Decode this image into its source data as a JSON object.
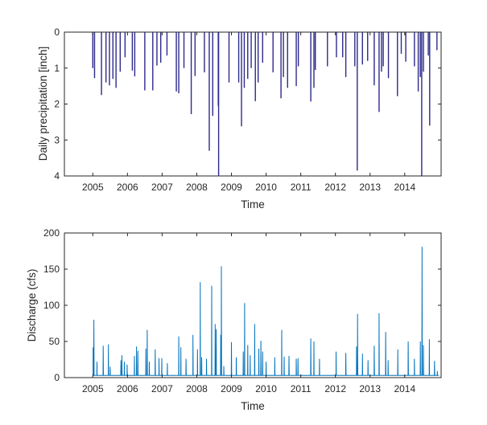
{
  "chart_data": [
    {
      "type": "bar",
      "xlabel": "Time",
      "ylabel": "Daily precipitation [inch]",
      "xlim": [
        2004.18,
        2015.05
      ],
      "ylim": [
        0,
        4
      ],
      "y_reversed": true,
      "xticks": [
        "2005",
        "2006",
        "2007",
        "2008",
        "2009",
        "2010",
        "2011",
        "2012",
        "2013",
        "2014"
      ],
      "yticks": [
        "0",
        "1",
        "2",
        "3",
        "4"
      ],
      "color": "#2e2a8c",
      "grid": false,
      "points": [
        [
          2005.0,
          1.0
        ],
        [
          2005.05,
          1.28
        ],
        [
          2005.25,
          1.75
        ],
        [
          2005.38,
          1.4
        ],
        [
          2005.48,
          1.48
        ],
        [
          2005.58,
          1.3
        ],
        [
          2005.67,
          1.55
        ],
        [
          2005.79,
          1.1
        ],
        [
          2005.93,
          0.7
        ],
        [
          2006.14,
          1.07
        ],
        [
          2006.21,
          1.23
        ],
        [
          2006.5,
          1.62
        ],
        [
          2006.73,
          1.62
        ],
        [
          2006.85,
          0.93
        ],
        [
          2006.96,
          0.85
        ],
        [
          2007.14,
          0.65
        ],
        [
          2007.41,
          1.65
        ],
        [
          2007.48,
          1.7
        ],
        [
          2007.63,
          1.0
        ],
        [
          2007.84,
          2.28
        ],
        [
          2007.95,
          1.22
        ],
        [
          2008.22,
          1.12
        ],
        [
          2008.36,
          3.3
        ],
        [
          2008.46,
          2.33
        ],
        [
          2008.62,
          2.05
        ],
        [
          2008.63,
          4.0
        ],
        [
          2008.93,
          1.4
        ],
        [
          2009.21,
          1.4
        ],
        [
          2009.29,
          2.62
        ],
        [
          2009.37,
          1.55
        ],
        [
          2009.47,
          1.3
        ],
        [
          2009.57,
          1.0
        ],
        [
          2009.69,
          1.92
        ],
        [
          2009.77,
          1.4
        ],
        [
          2009.9,
          0.85
        ],
        [
          2010.2,
          1.12
        ],
        [
          2010.43,
          1.84
        ],
        [
          2010.5,
          1.25
        ],
        [
          2010.62,
          1.55
        ],
        [
          2010.87,
          1.5
        ],
        [
          2010.93,
          0.95
        ],
        [
          2011.29,
          1.93
        ],
        [
          2011.38,
          1.55
        ],
        [
          2011.42,
          1.05
        ],
        [
          2011.77,
          0.95
        ],
        [
          2012.03,
          0.7
        ],
        [
          2012.21,
          0.7
        ],
        [
          2012.3,
          1.25
        ],
        [
          2012.56,
          0.95
        ],
        [
          2012.63,
          3.85
        ],
        [
          2012.78,
          0.9
        ],
        [
          2012.93,
          0.8
        ],
        [
          2013.12,
          1.48
        ],
        [
          2013.26,
          2.22
        ],
        [
          2013.33,
          1.1
        ],
        [
          2013.38,
          0.95
        ],
        [
          2013.53,
          1.28
        ],
        [
          2013.79,
          1.78
        ],
        [
          2013.9,
          0.6
        ],
        [
          2014.03,
          0.82
        ],
        [
          2014.28,
          0.95
        ],
        [
          2014.39,
          1.65
        ],
        [
          2014.45,
          1.25
        ],
        [
          2014.49,
          4.0
        ],
        [
          2014.54,
          1.1
        ],
        [
          2014.68,
          0.65
        ],
        [
          2014.72,
          2.6
        ],
        [
          2014.93,
          0.5
        ]
      ]
    },
    {
      "type": "line",
      "xlabel": "Time",
      "ylabel": "Discharge (cfs)",
      "xlim": [
        2004.18,
        2015.05
      ],
      "ylim": [
        0,
        200
      ],
      "xticks": [
        "2005",
        "2006",
        "2007",
        "2008",
        "2009",
        "2010",
        "2011",
        "2012",
        "2013",
        "2014"
      ],
      "yticks": [
        "0",
        "50",
        "100",
        "150",
        "200"
      ],
      "color": "#0072bd",
      "grid": false,
      "baseflow": 3,
      "range": [
        2005.0,
        2014.99
      ],
      "points": [
        [
          2005.01,
          42
        ],
        [
          2005.03,
          80
        ],
        [
          2005.12,
          22
        ],
        [
          2005.3,
          44
        ],
        [
          2005.45,
          46
        ],
        [
          2005.5,
          15
        ],
        [
          2005.81,
          24
        ],
        [
          2005.84,
          31
        ],
        [
          2005.91,
          22
        ],
        [
          2005.99,
          18
        ],
        [
          2006.2,
          30
        ],
        [
          2006.26,
          43
        ],
        [
          2006.3,
          37
        ],
        [
          2006.53,
          40
        ],
        [
          2006.57,
          66
        ],
        [
          2006.63,
          22
        ],
        [
          2006.8,
          39
        ],
        [
          2006.91,
          27
        ],
        [
          2006.99,
          27
        ],
        [
          2007.15,
          20
        ],
        [
          2007.48,
          57
        ],
        [
          2007.54,
          42
        ],
        [
          2007.69,
          26
        ],
        [
          2007.89,
          59
        ],
        [
          2008.02,
          39
        ],
        [
          2008.1,
          132
        ],
        [
          2008.14,
          28
        ],
        [
          2008.28,
          26
        ],
        [
          2008.43,
          127
        ],
        [
          2008.53,
          74
        ],
        [
          2008.56,
          67
        ],
        [
          2008.69,
          59
        ],
        [
          2008.71,
          154
        ],
        [
          2008.78,
          16
        ],
        [
          2009.0,
          49
        ],
        [
          2009.14,
          28
        ],
        [
          2009.34,
          36
        ],
        [
          2009.38,
          103
        ],
        [
          2009.47,
          45
        ],
        [
          2009.54,
          31
        ],
        [
          2009.67,
          74
        ],
        [
          2009.79,
          40
        ],
        [
          2009.85,
          51
        ],
        [
          2009.9,
          36
        ],
        [
          2010.0,
          22
        ],
        [
          2010.25,
          28
        ],
        [
          2010.45,
          66
        ],
        [
          2010.52,
          29
        ],
        [
          2010.66,
          30
        ],
        [
          2010.87,
          26
        ],
        [
          2010.92,
          27
        ],
        [
          2011.29,
          54
        ],
        [
          2011.38,
          50
        ],
        [
          2011.54,
          26
        ],
        [
          2012.02,
          36
        ],
        [
          2012.3,
          34
        ],
        [
          2012.61,
          43
        ],
        [
          2012.64,
          88
        ],
        [
          2012.78,
          33
        ],
        [
          2012.94,
          24
        ],
        [
          2013.12,
          44
        ],
        [
          2013.26,
          89
        ],
        [
          2013.45,
          63
        ],
        [
          2013.52,
          24
        ],
        [
          2013.8,
          39
        ],
        [
          2014.1,
          50
        ],
        [
          2014.28,
          26
        ],
        [
          2014.45,
          50
        ],
        [
          2014.5,
          181
        ],
        [
          2014.54,
          45
        ],
        [
          2014.71,
          53
        ],
        [
          2014.86,
          23
        ],
        [
          2014.94,
          9
        ]
      ]
    }
  ]
}
